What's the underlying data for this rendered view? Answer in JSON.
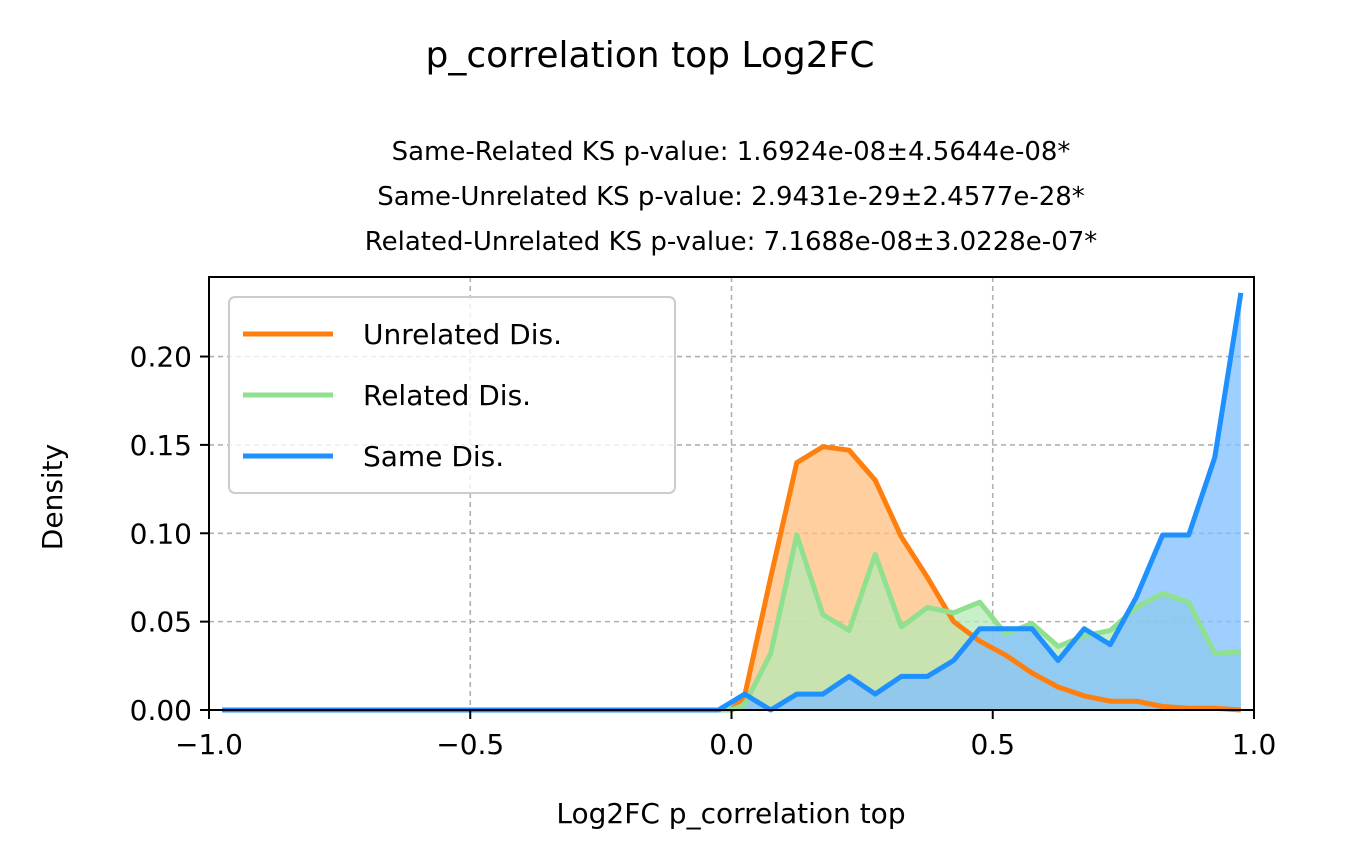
{
  "chart_data": {
    "type": "area",
    "title": "p_correlation top Log2FC",
    "subtitle_lines": [
      "Same-Related KS p-value: 1.6924e-08±4.5644e-08*",
      "Same-Unrelated KS p-value: 2.9431e-29±2.4577e-28*",
      "Related-Unrelated KS p-value: 7.1688e-08±3.0228e-07*"
    ],
    "xlabel": "Log2FC p_correlation top",
    "ylabel": "Density",
    "xlim": [
      -1.0,
      1.0
    ],
    "ylim": [
      0.0,
      0.245
    ],
    "xticks": [
      -1.0,
      -0.5,
      0.0,
      0.5,
      1.0
    ],
    "xtick_labels": [
      "−1.0",
      "−0.5",
      "0.0",
      "0.5",
      "1.0"
    ],
    "yticks": [
      0.0,
      0.05,
      0.1,
      0.15,
      0.2
    ],
    "ytick_labels": [
      "0.00",
      "0.05",
      "0.10",
      "0.15",
      "0.20"
    ],
    "grid": true,
    "legend_position": "upper-left",
    "series": [
      {
        "name": "Unrelated Dis.",
        "color": "#ff7f0e",
        "fill": "#ffbf80",
        "x": [
          -0.975,
          0.0,
          0.025,
          0.075,
          0.125,
          0.175,
          0.225,
          0.275,
          0.325,
          0.375,
          0.425,
          0.475,
          0.525,
          0.575,
          0.625,
          0.675,
          0.725,
          0.775,
          0.825,
          0.875,
          0.925,
          0.975
        ],
        "y": [
          0.0,
          0.0,
          0.008,
          0.075,
          0.14,
          0.149,
          0.147,
          0.13,
          0.098,
          0.075,
          0.05,
          0.039,
          0.031,
          0.021,
          0.013,
          0.008,
          0.005,
          0.005,
          0.002,
          0.001,
          0.001,
          0.0
        ]
      },
      {
        "name": "Related Dis.",
        "color": "#8fe08f",
        "fill": "#b5eab5",
        "x": [
          -0.975,
          0.0,
          0.025,
          0.075,
          0.125,
          0.175,
          0.225,
          0.275,
          0.325,
          0.375,
          0.425,
          0.475,
          0.525,
          0.575,
          0.625,
          0.675,
          0.725,
          0.775,
          0.825,
          0.875,
          0.925,
          0.975
        ],
        "y": [
          0.0,
          0.0,
          0.003,
          0.032,
          0.099,
          0.054,
          0.045,
          0.088,
          0.047,
          0.058,
          0.055,
          0.061,
          0.043,
          0.049,
          0.036,
          0.042,
          0.045,
          0.058,
          0.066,
          0.061,
          0.032,
          0.033
        ]
      },
      {
        "name": "Same Dis.",
        "color": "#1e90ff",
        "fill": "#7fbfff",
        "x": [
          -0.975,
          -0.025,
          0.025,
          0.075,
          0.125,
          0.175,
          0.225,
          0.275,
          0.325,
          0.375,
          0.425,
          0.475,
          0.525,
          0.575,
          0.625,
          0.675,
          0.725,
          0.775,
          0.825,
          0.875,
          0.925,
          0.975
        ],
        "y": [
          0.0,
          0.0,
          0.009,
          0.0,
          0.009,
          0.009,
          0.019,
          0.009,
          0.019,
          0.019,
          0.028,
          0.046,
          0.046,
          0.046,
          0.028,
          0.046,
          0.037,
          0.064,
          0.099,
          0.099,
          0.143,
          0.236
        ]
      }
    ]
  }
}
